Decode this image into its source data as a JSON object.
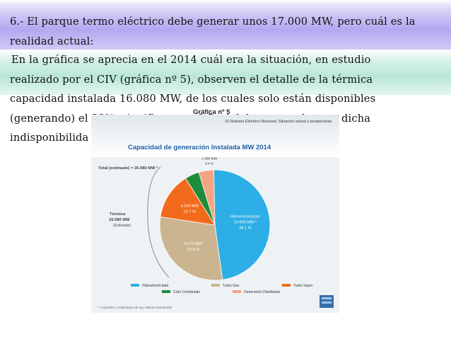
{
  "paragraph1": {
    "line1": "6.- El parque termo eléctrico debe generar unos 17.000 MW, pero cuál es la",
    "line2": "realidad actual:"
  },
  "paragraph2": {
    "line1": "En la gráfica se aprecia en  el  2014 cuál era la situación, en estudio",
    "line2": "realizado por el CIV (gráfica nº 5), observen el detalle de la térmica",
    "line3": "capacidad instalada 16.080 MW, de los cuales solo están disponibles",
    "line4": "(generando) el 38%, significa que el Guri debe responder por dicha",
    "line5": "indisponibilida"
  },
  "figure_caption": "Gráfica nº 5",
  "colors": {
    "hidro": "#2eaee6",
    "turbo_gas": "#cbb590",
    "turbo_vapor": "#f26b1d",
    "ciclo_combinado": "#1f8c3b",
    "generacion_distribuida": "#f4a582",
    "title_blue": "#1d5fa8"
  },
  "chart_data": {
    "type": "pie",
    "header": "El Sistema Eléctrico Nacional. Situación actual y perspectivas",
    "title": "Capacidad de generación Instalada MW  2014",
    "total_label": "Total (estimado) = 30.980 MW *",
    "termica_label": "Térmica",
    "termica_value": "16.080 MW",
    "termica_note": "(Estimado)",
    "footnote": "* Corpoelec y estimados de Ing. Nelson Hernández",
    "slices": [
      {
        "name": "Hidroelectricidad",
        "value_label": "14.900 MW *",
        "percent_label": "48.1 %",
        "percent": 48.1,
        "color": "#2eaee6"
      },
      {
        "name": "Turbo Gas",
        "value_label": "9.170 MW",
        "percent_label": "29.6 %",
        "percent": 29.6,
        "color": "#cbb590"
      },
      {
        "name": "Turbo Vapor",
        "value_label": "4.244 MW",
        "percent_label": "13.7 %",
        "percent": 13.7,
        "color": "#f26b1d"
      },
      {
        "name": "Ciclo Combinado",
        "value_label": "",
        "percent_label": "4.2 %",
        "percent": 4.2,
        "color": "#1f8c3b"
      },
      {
        "name": "Generación Distribuida",
        "value_label": "1.360 MW",
        "percent_label": "4.4 %",
        "percent": 4.4,
        "color": "#f4a582"
      }
    ],
    "legend": [
      "Hidroelectricidad",
      "Turbo Gas",
      "Turbo Vapor",
      "Ciclo Combinado",
      "Generación Distribuida"
    ]
  }
}
